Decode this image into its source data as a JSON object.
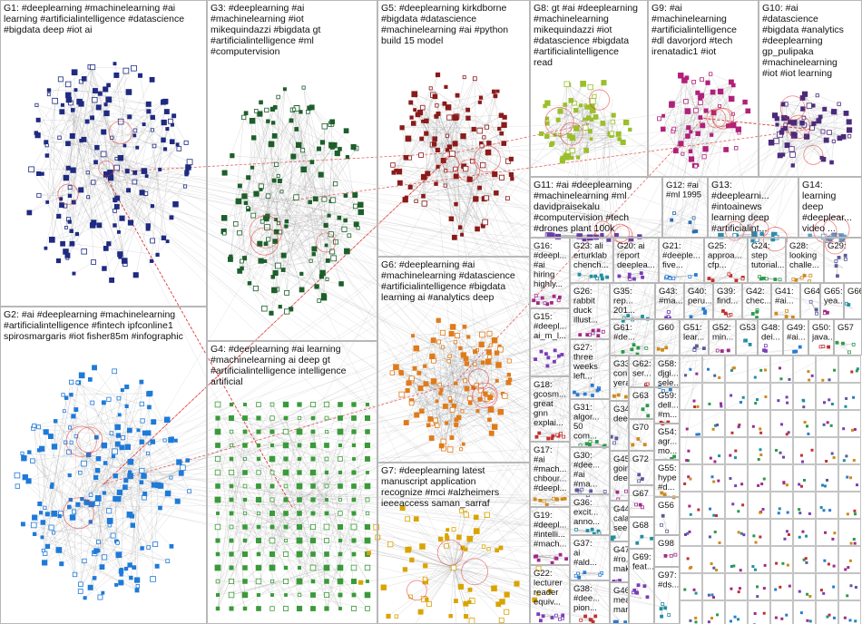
{
  "groups": [
    {
      "lines": [
        "G1: #deeplearning #machinelearning #ai",
        "learning #artificialintelligence #datascience",
        "#bigdata deep #iot ai"
      ]
    },
    {
      "lines": [
        "G2: #ai #deeplearning #machinelearning",
        "#artificialintelligence #fintech ipfconline1",
        "spirosmargaris #iot fisher85m #infographic"
      ]
    },
    {
      "lines": [
        "G3: #deeplearning #ai",
        "#machinelearning #iot",
        "mikequindazzi #bigdata gt",
        "#artificialintelligence #ml",
        "#computervision"
      ]
    },
    {
      "lines": [
        "G4: #deeplearning #ai learning",
        "#machinelearning ai deep gt",
        "#artificialintelligence intelligence",
        "artificial"
      ]
    },
    {
      "lines": [
        "G5: #deeplearning kirkdborne",
        "#bigdata #datascience",
        "#machinelearning #ai #python",
        "build 15 model"
      ]
    },
    {
      "lines": [
        "G6: #deeplearning #ai",
        "#machinelearning #datascience",
        "#artificialintelligence #bigdata",
        "learning ai #analytics deep"
      ]
    },
    {
      "lines": [
        "G7: #deeplearning latest",
        "manuscript application",
        "recognize #mci #alzheimers",
        "ieeeaccess saman_sarraf"
      ]
    },
    {
      "lines": [
        "G8: gt #ai #deeplearning",
        "#machinelearning",
        "mikequindazzi #iot",
        "#datascience #bigdata",
        "#artificialintelligence",
        "read"
      ]
    },
    {
      "lines": [
        "G9: #ai",
        "#machinelearning",
        "#artificialintelligence",
        "#dl davorjord #tech",
        "irenatadic1 #iot"
      ]
    },
    {
      "lines": [
        "G10: #ai",
        "#datascience",
        "#bigdata #analytics",
        "#deeplearning",
        "gp_pulipaka",
        "#machinelearning",
        "#iot #iot learning"
      ]
    },
    {
      "lines": [
        "G11: #ai #deeplearning",
        "#machinelearning #ml",
        "davidpraisekalu",
        "#computervision #tech",
        "#drones plant 100k"
      ]
    },
    {
      "lines": [
        "G12: #ai",
        "#ml 1995"
      ]
    },
    {
      "lines": [
        "G13:",
        "#deeplearni...",
        "#intoainews",
        "learning deep",
        "#artificialint..."
      ]
    },
    {
      "lines": [
        "G14:",
        "learning",
        "deep",
        "#deeplear...",
        "video ..."
      ]
    },
    {
      "lines": [
        "G16:",
        "#deepl...",
        "#ai",
        "hiring",
        "highly..."
      ]
    },
    {
      "lines": [
        "G23: ali",
        "erturklab",
        "chench..."
      ]
    },
    {
      "lines": [
        "G20: ai",
        "report",
        "deeplea..."
      ]
    },
    {
      "lines": [
        "G21:",
        "#deeple...",
        "five..."
      ]
    },
    {
      "lines": [
        "G25:",
        "approa...",
        "cfp..."
      ]
    },
    {
      "lines": [
        "G24:",
        "step",
        "tutorial..."
      ]
    },
    {
      "lines": [
        "G28:",
        "looking",
        "challe..."
      ]
    },
    {
      "lines": [
        "G29:"
      ]
    },
    {
      "lines": [
        "G26:",
        "rabbit",
        "duck",
        "illust..."
      ]
    },
    {
      "lines": [
        "G35:",
        "rep...",
        "201..."
      ]
    },
    {
      "lines": [
        "G43:",
        "#ma..."
      ]
    },
    {
      "lines": [
        "G40:",
        "peru..."
      ]
    },
    {
      "lines": [
        "G39:",
        "find..."
      ]
    },
    {
      "lines": [
        "G42:",
        "chec..."
      ]
    },
    {
      "lines": [
        "G41:",
        "#ai..."
      ]
    },
    {
      "lines": [
        "G64"
      ]
    },
    {
      "lines": [
        "G65:",
        "yea..."
      ]
    },
    {
      "lines": [
        "G66"
      ]
    },
    {
      "lines": [
        "G15:",
        "#deepl...",
        "ai_m_l..."
      ]
    },
    {
      "lines": [
        "G27:",
        "three",
        "weeks",
        "left..."
      ]
    },
    {
      "lines": [
        "G18:",
        "gcosm...",
        "great",
        "gnn",
        "explai..."
      ]
    },
    {
      "lines": [
        "G31:",
        "algor...",
        "50",
        "com..."
      ]
    },
    {
      "lines": [
        "G17:",
        "#ai",
        "#mach...",
        "chbour...",
        "#deepl..."
      ]
    },
    {
      "lines": [
        "G30:",
        "#dee...",
        "#ai",
        "#ma..."
      ]
    },
    {
      "lines": [
        "G19:",
        "#deepl...",
        "#intelli...",
        "#mach..."
      ]
    },
    {
      "lines": [
        "G36:",
        "excit...",
        "anno..."
      ]
    },
    {
      "lines": [
        "G22:",
        "lecturer",
        "reader",
        "equiv..."
      ]
    },
    {
      "lines": [
        "G37:",
        "ai",
        "#ald..."
      ]
    },
    {
      "lines": [
        "G38:",
        "#dee...",
        "pion..."
      ]
    },
    {
      "lines": [
        "G61:",
        "#de..."
      ]
    },
    {
      "lines": [
        "G60"
      ]
    },
    {
      "lines": [
        "G51:",
        "lear..."
      ]
    },
    {
      "lines": [
        "G52:",
        "min..."
      ]
    },
    {
      "lines": [
        "G53"
      ]
    },
    {
      "lines": [
        "G48:",
        "dei..."
      ]
    },
    {
      "lines": [
        "G49:",
        "#ai..."
      ]
    },
    {
      "lines": [
        "G50:",
        "java..."
      ]
    },
    {
      "lines": [
        "G57"
      ]
    },
    {
      "lines": [
        "G33:",
        "con...",
        "yera..."
      ]
    },
    {
      "lines": [
        "G34:",
        "dee..."
      ]
    },
    {
      "lines": [
        "G45:",
        "going",
        "dee..."
      ]
    },
    {
      "lines": [
        "G44:",
        "cala...",
        "see..."
      ]
    },
    {
      "lines": [
        "G47:",
        "#ro...",
        "mak..."
      ]
    },
    {
      "lines": [
        "G46:",
        "mea...",
        "man..."
      ]
    },
    {
      "lines": [
        "G62:",
        "ser..."
      ]
    },
    {
      "lines": [
        "G63"
      ]
    },
    {
      "lines": [
        "G70"
      ]
    },
    {
      "lines": [
        "G72"
      ]
    },
    {
      "lines": [
        "G67"
      ]
    },
    {
      "lines": [
        "G68"
      ]
    },
    {
      "lines": [
        "G69:",
        "feat..."
      ]
    },
    {
      "lines": [
        "G58:",
        "djgi...",
        "sele..."
      ]
    },
    {
      "lines": [
        "G59:",
        "dell...",
        "#m..."
      ]
    },
    {
      "lines": [
        "G54:",
        "agr...",
        "mo..."
      ]
    },
    {
      "lines": [
        "G55:",
        "hype",
        "#d..."
      ]
    },
    {
      "lines": [
        "G56"
      ]
    },
    {
      "lines": [
        "G98"
      ]
    },
    {
      "lines": [
        "G97:",
        "#ds..."
      ]
    }
  ]
}
